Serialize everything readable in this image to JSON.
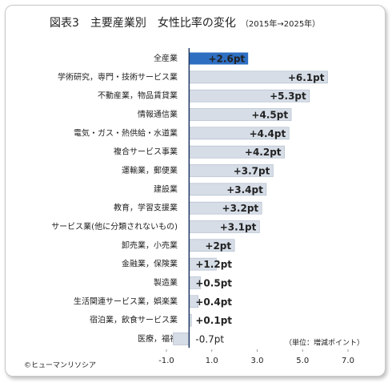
{
  "chart_data": {
    "type": "hbar",
    "title": "図表3　主要産業別　女性比率の変化",
    "subtitle": "（2015年→2025年）",
    "categories": [
      "全産業",
      "学術研究，専門・技術サービス業",
      "不動産業，物品賃貸業",
      "情報通信業",
      "電気・ガス・熱供給・水道業",
      "複合サービス事業",
      "運輸業，郵便業",
      "建設業",
      "教育，学習支援業",
      "サービス業(他に分類されないもの)",
      "卸売業，小売業",
      "金融業，保険業",
      "製造業",
      "生活関連サービス業，娯楽業",
      "宿泊業，飲食サービス業",
      "医療，福祉"
    ],
    "values": [
      2.6,
      6.1,
      5.3,
      4.5,
      4.4,
      4.2,
      3.7,
      3.4,
      3.2,
      3.1,
      2.0,
      1.2,
      0.5,
      0.4,
      0.1,
      -0.7
    ],
    "value_labels": [
      "+2.6pt",
      "+6.1pt",
      "+5.3pt",
      "+4.5pt",
      "+4.4pt",
      "+4.2pt",
      "+3.7pt",
      "+3.4pt",
      "+3.2pt",
      "+3.1pt",
      "+2pt",
      "+1.2pt",
      "+0.5pt",
      "+0.4pt",
      "+0.1pt",
      "-0.7pt"
    ],
    "colors": [
      "#2e6fc2",
      "#d6dde7",
      "#d6dde7",
      "#d6dde7",
      "#d6dde7",
      "#d6dde7",
      "#d6dde7",
      "#d6dde7",
      "#d6dde7",
      "#d6dde7",
      "#d6dde7",
      "#d6dde7",
      "#d6dde7",
      "#d6dde7",
      "#d6dde7",
      "#d6dde7"
    ],
    "label_colors": [
      "#ffffff",
      "#1f3864",
      "#1f3864",
      "#1f3864",
      "#1f3864",
      "#1f3864",
      "#1f3864",
      "#1f3864",
      "#1f3864",
      "#1f3864",
      "#1f3864",
      "#1f3864",
      "#1f3864",
      "#1f3864",
      "#1f3864",
      "#e0302a"
    ],
    "xlim": [
      -1,
      7
    ],
    "xticks": [
      {
        "value": -1,
        "label": "-1.0"
      },
      {
        "value": 1,
        "label": "1.0"
      },
      {
        "value": 3,
        "label": "3.0"
      },
      {
        "value": 5,
        "label": "5.0"
      },
      {
        "value": 7,
        "label": "7.0"
      }
    ],
    "annotation": "（単位：増減ポイント）",
    "source": "©ヒューマンリソシア"
  }
}
